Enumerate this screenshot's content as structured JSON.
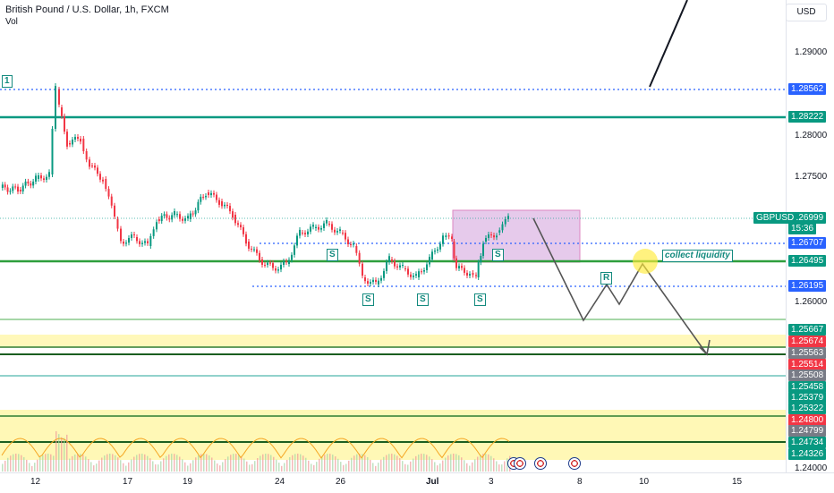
{
  "header": {
    "title": "British Pound / U.S. Dollar, 1h, FXCM",
    "vol_label": "Vol"
  },
  "currency_button": "USD",
  "price_axis": [
    "1.29000",
    "1.28562",
    "1.28222",
    "1.28000",
    "1.27500",
    "1.26999",
    "15:36",
    "1.26707",
    "1.26495",
    "1.26195",
    "1.26000",
    "1.25667",
    "1.25674",
    "1.25563",
    "1.25514",
    "1.25508",
    "1.25458",
    "1.25379",
    "1.25322",
    "1.24800",
    "1.24799",
    "1.24734",
    "1.24326",
    "1.24000"
  ],
  "symbol_tag": "GBPUSD",
  "price_tags": [
    {
      "text": "1.28562",
      "color": "#2962ff"
    },
    {
      "text": "1.28222",
      "color": "#089981"
    },
    {
      "text": "1.26999",
      "color": "#089981"
    },
    {
      "text": "15:36",
      "color": "#089981"
    },
    {
      "text": "1.26707",
      "color": "#2962ff"
    },
    {
      "text": "1.26495",
      "color": "#089981"
    },
    {
      "text": "1.26195",
      "color": "#2962ff"
    },
    {
      "text": "1.25667",
      "color": "#089981"
    },
    {
      "text": "1.25674",
      "color": "#f23645"
    },
    {
      "text": "1.25563",
      "color": "#787b86"
    },
    {
      "text": "1.25514",
      "color": "#f23645"
    },
    {
      "text": "1.25508",
      "color": "#787b86"
    },
    {
      "text": "1.25458",
      "color": "#089981"
    },
    {
      "text": "1.25379",
      "color": "#089981"
    },
    {
      "text": "1.25322",
      "color": "#089981"
    },
    {
      "text": "1.24800",
      "color": "#f23645"
    },
    {
      "text": "1.24799",
      "color": "#787b86"
    },
    {
      "text": "1.24734",
      "color": "#089981"
    },
    {
      "text": "1.24326",
      "color": "#089981"
    }
  ],
  "plain_ticks": [
    "1.29000",
    "1.28000",
    "1.27500",
    "1.26000",
    "1.24000"
  ],
  "time_axis": [
    "12",
    "17",
    "19",
    "24",
    "26",
    "Jul",
    "3",
    "8",
    "10",
    "15"
  ],
  "annotations": {
    "wave_label": "1",
    "support_labels": [
      "S",
      "S",
      "S",
      "S",
      "S"
    ],
    "retest_label": "R",
    "liquidity_label": "collect liquidity"
  }
}
